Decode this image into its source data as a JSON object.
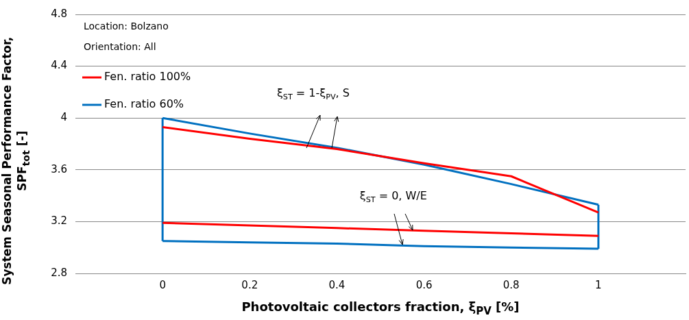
{
  "chart_data": {
    "type": "line",
    "xlabel": "Photovoltaic collectors fraction, ξ$_{PV}$ [%]",
    "ylabel": "System Seasonal Performance Factor, SPF$_{tot}$ [-]",
    "xlim": [
      -0.2,
      1.2
    ],
    "xticks": [
      0,
      0.2,
      0.4,
      0.6,
      0.8,
      1
    ],
    "ylim": [
      2.8,
      4.8
    ],
    "yticks": [
      2.8,
      3.2,
      3.6,
      4.0,
      4.4,
      4.8
    ],
    "grid": "y",
    "legend": "top left",
    "marker": "none",
    "line_style": "solid",
    "series": [
      {
        "name": "Fen. ratio 100%",
        "color": "#ff0000",
        "x": [
          0,
          0.2,
          0.4,
          0.6,
          0.8,
          1
        ],
        "values": [
          3.93,
          3.84,
          3.76,
          3.65,
          3.55,
          3.27
        ]
      },
      {
        "name": "Fen. ratio 60%",
        "color": "#0070c0",
        "x": [
          0,
          0.2,
          0.4,
          0.6,
          0.8,
          1
        ],
        "values": [
          4.0,
          3.88,
          3.77,
          3.64,
          3.49,
          3.33
        ]
      },
      {
        "color": "#ff0000",
        "x": [
          0,
          0.2,
          0.4,
          0.6,
          0.8,
          1
        ],
        "values": [
          3.19,
          3.17,
          3.15,
          3.13,
          3.11,
          3.09
        ]
      },
      {
        "color": "#0070c0",
        "x": [
          0,
          0.2,
          0.4,
          0.6,
          0.8,
          1
        ],
        "values": [
          3.05,
          3.04,
          3.03,
          3.01,
          3.0,
          2.99
        ]
      },
      {
        "color": "#0070c0",
        "x": [
          0,
          0
        ],
        "values": [
          3.05,
          4.0
        ]
      },
      {
        "color": "#0070c0",
        "x": [
          1,
          1
        ],
        "values": [
          2.99,
          3.33
        ]
      }
    ],
    "annotations": [
      "Location: Bolzano",
      "Orientation: All",
      {
        "text": "ξ$_{ST}$ = 1-ξ$_{PV}$, S",
        "x": 0.33,
        "y": 3.77
      },
      {
        "text": "ξ$_{ST}$ = 0, W/E",
        "x": 0.55,
        "y": 3.02
      }
    ]
  }
}
